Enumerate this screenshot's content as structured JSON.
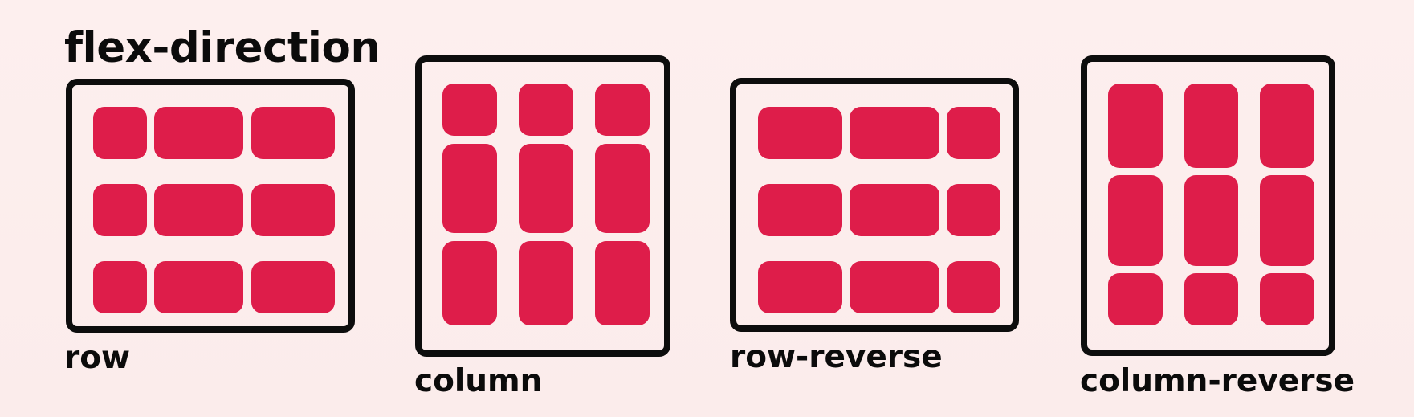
{
  "title": "flex-direction",
  "colors": {
    "item": "#de1d4a",
    "frame": "#0d0d0d",
    "background": "#fcecec"
  },
  "labels": {
    "row": "row",
    "column": "column",
    "row_reverse": "row-reverse",
    "column_reverse": "column-reverse"
  }
}
